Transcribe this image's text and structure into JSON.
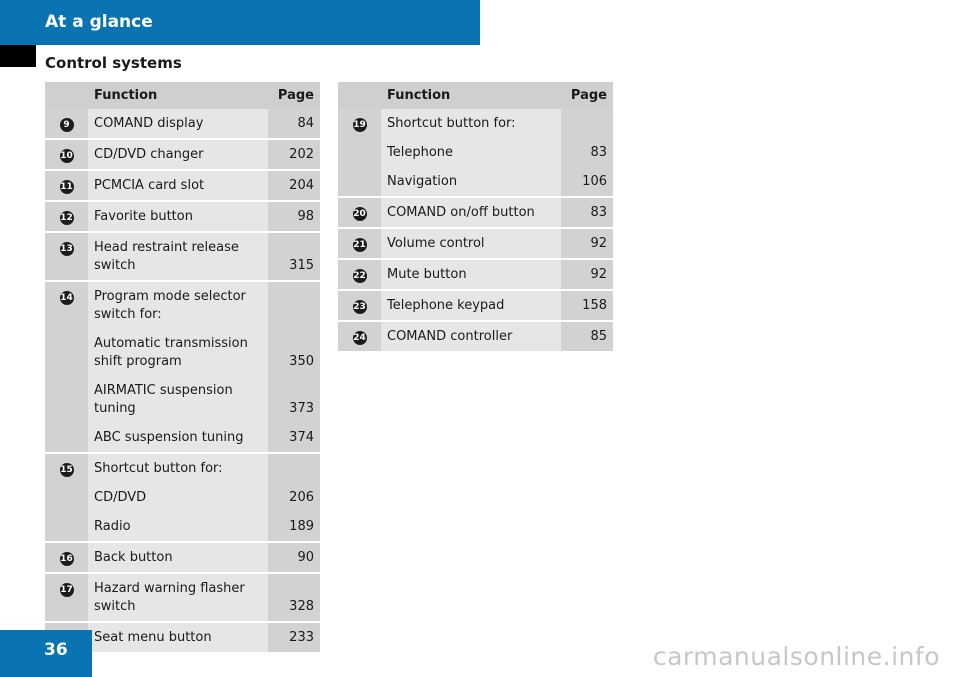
{
  "header": {
    "title": "At a glance"
  },
  "section": {
    "title": "Control systems"
  },
  "page_number": "36",
  "watermark": "carmanualsonline.info",
  "table_headers": {
    "function": "Function",
    "page": "Page"
  },
  "left_rows": [
    {
      "num": "9",
      "lines": [
        {
          "text": "COMAND display",
          "page": "84"
        }
      ]
    },
    {
      "num": "10",
      "lines": [
        {
          "text": "CD/DVD changer",
          "page": "202"
        }
      ]
    },
    {
      "num": "11",
      "lines": [
        {
          "text": "PCMCIA card slot",
          "page": "204"
        }
      ]
    },
    {
      "num": "12",
      "lines": [
        {
          "text": "Favorite button",
          "page": "98"
        }
      ]
    },
    {
      "num": "13",
      "lines": [
        {
          "text": "Head restraint release\nswitch",
          "page": "315"
        }
      ]
    },
    {
      "num": "14",
      "lines": [
        {
          "text": "Program mode selector\nswitch for:",
          "page": ""
        },
        {
          "text": "Automatic transmission\nshift program",
          "page": "350"
        },
        {
          "text": "AIRMATIC suspension\ntuning",
          "page": "373"
        },
        {
          "text": "ABC suspension tuning",
          "page": "374"
        }
      ]
    },
    {
      "num": "15",
      "lines": [
        {
          "text": "Shortcut button for:",
          "page": ""
        },
        {
          "text": "CD/DVD",
          "page": "206"
        },
        {
          "text": "Radio",
          "page": "189"
        }
      ]
    },
    {
      "num": "16",
      "lines": [
        {
          "text": "Back button",
          "page": "90"
        }
      ]
    },
    {
      "num": "17",
      "lines": [
        {
          "text": "Hazard warning flasher\nswitch",
          "page": "328"
        }
      ]
    },
    {
      "num": "18",
      "lines": [
        {
          "text": "Seat menu button",
          "page": "233"
        }
      ]
    }
  ],
  "right_rows": [
    {
      "num": "19",
      "lines": [
        {
          "text": "Shortcut button for:",
          "page": ""
        },
        {
          "text": "Telephone",
          "page": "83"
        },
        {
          "text": "Navigation",
          "page": "106"
        }
      ]
    },
    {
      "num": "20",
      "lines": [
        {
          "text": "COMAND on/off button",
          "page": "83"
        }
      ]
    },
    {
      "num": "21",
      "lines": [
        {
          "text": "Volume control",
          "page": "92"
        }
      ]
    },
    {
      "num": "22",
      "lines": [
        {
          "text": "Mute button",
          "page": "92"
        }
      ]
    },
    {
      "num": "23",
      "lines": [
        {
          "text": "Telephone keypad",
          "page": "158"
        }
      ]
    },
    {
      "num": "24",
      "lines": [
        {
          "text": "COMAND controller",
          "page": "85"
        }
      ]
    }
  ]
}
